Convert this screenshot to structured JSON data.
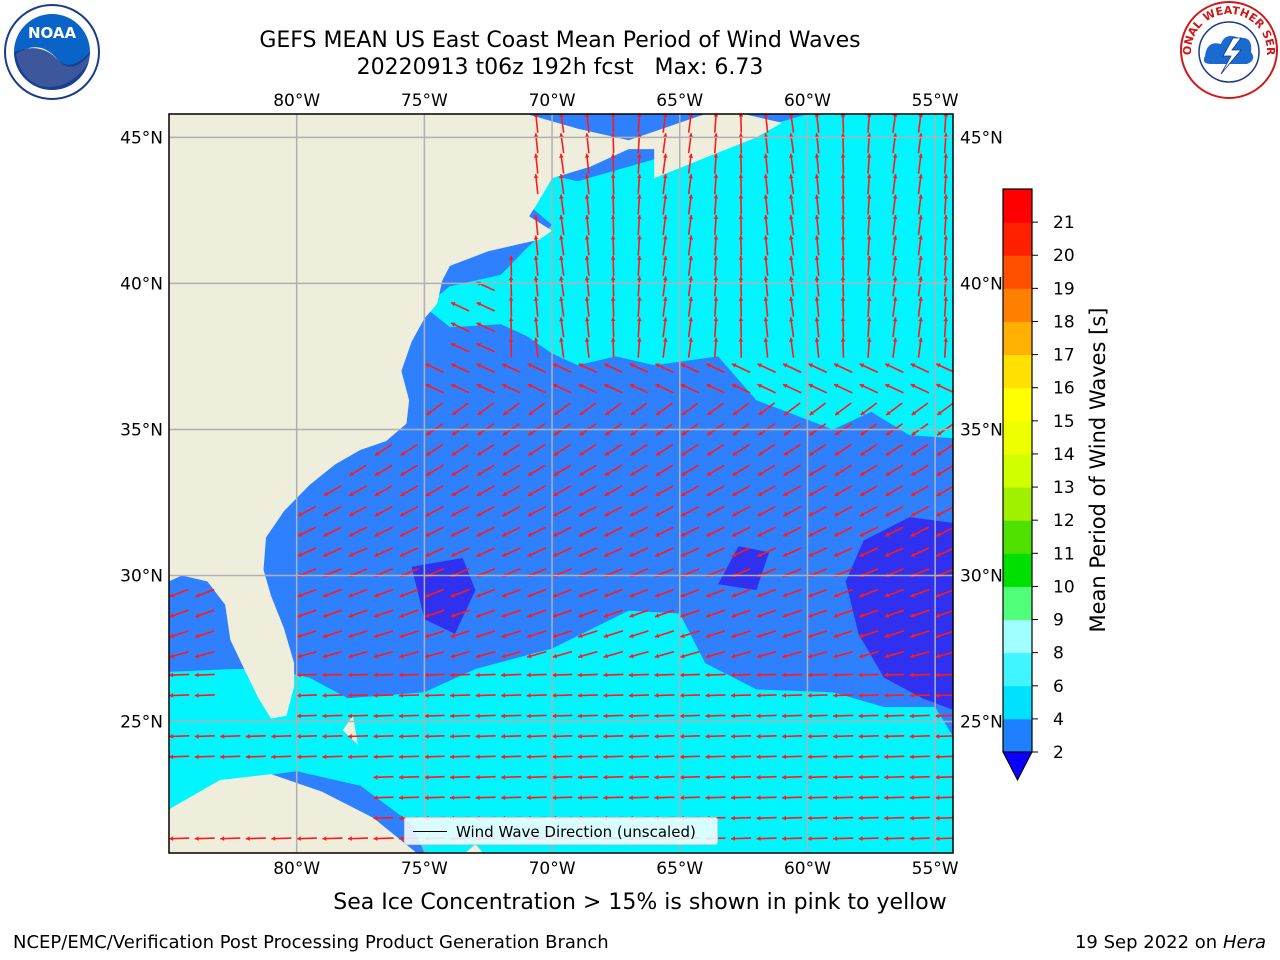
{
  "header": {
    "title_line1": "GEFS MEAN US East Coast Mean Period of Wind Waves",
    "title_line2": "20220913 t06z 192h fcst   Max: 6.73"
  },
  "logos": {
    "left": {
      "icon": "noaa-logo-icon",
      "text": "NOAA"
    },
    "right": {
      "icon": "nws-logo-icon",
      "text": "NATIONAL WEATHER SERVICE"
    }
  },
  "map": {
    "lon_labels": [
      "80°W",
      "75°W",
      "70°W",
      "65°W",
      "60°W",
      "55°W"
    ],
    "lat_labels": [
      "45°N",
      "40°N",
      "35°N",
      "30°N",
      "25°N"
    ],
    "extent": {
      "lon": [
        -85,
        -54.3
      ],
      "lat": [
        20.5,
        45.8
      ]
    },
    "gridlines": true,
    "colors": {
      "land": "#efeedc",
      "low": "#2f80ff",
      "mid": "#00f5ff",
      "high": "#3030f0",
      "arrow": "#ff1a1a"
    },
    "legend": {
      "label": "Wind Wave Direction (unscaled)"
    }
  },
  "colorbar": {
    "label": "Mean Period of Wind Waves [s]",
    "ticks": [
      2,
      4,
      6,
      8,
      9,
      10,
      11,
      12,
      13,
      14,
      15,
      16,
      17,
      18,
      19,
      20,
      21
    ],
    "bins": [
      {
        "from": 2,
        "to": 4,
        "color": "#1e7fff"
      },
      {
        "from": 4,
        "to": 6,
        "color": "#00e0ff"
      },
      {
        "from": 6,
        "to": 8,
        "color": "#40f5ff"
      },
      {
        "from": 8,
        "to": 9,
        "color": "#a0ffff"
      },
      {
        "from": 9,
        "to": 10,
        "color": "#52ff7a"
      },
      {
        "from": 10,
        "to": 11,
        "color": "#00e000"
      },
      {
        "from": 11,
        "to": 12,
        "color": "#50e000"
      },
      {
        "from": 12,
        "to": 13,
        "color": "#a0f000"
      },
      {
        "from": 13,
        "to": 14,
        "color": "#d0ff00"
      },
      {
        "from": 14,
        "to": 15,
        "color": "#eeff00"
      },
      {
        "from": 15,
        "to": 16,
        "color": "#ffff00"
      },
      {
        "from": 16,
        "to": 17,
        "color": "#ffe000"
      },
      {
        "from": 17,
        "to": 18,
        "color": "#ffb000"
      },
      {
        "from": 18,
        "to": 19,
        "color": "#ff8000"
      },
      {
        "from": 19,
        "to": 20,
        "color": "#ff5000"
      },
      {
        "from": 20,
        "to": 21,
        "color": "#ff2000"
      },
      {
        "from": 21,
        "to": 22,
        "color": "#ff0000"
      }
    ],
    "extend_low_color": "#0a00ff"
  },
  "note": "Sea Ice Concentration > 15% is shown in pink to yellow",
  "footer": {
    "left": "NCEP/EMC/Verification Post Processing Product Generation Branch",
    "run_date": "19 Sep 2022 on",
    "run_host": "Hera"
  }
}
